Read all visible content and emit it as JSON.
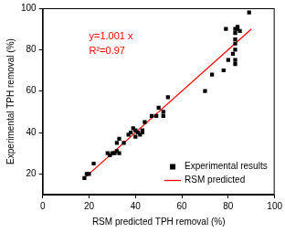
{
  "chart_data": {
    "type": "scatter",
    "x_label": "RSM predicted TPH removal (%)",
    "y_label": "Experimental TPH removal (%)",
    "annotations": [
      "y=1.001 x",
      "R²=0.97"
    ],
    "series": [
      {
        "name": "Experimental results",
        "type": "scatter",
        "marker": "square",
        "color": "#000000",
        "x": [
          18,
          19,
          20,
          22,
          28,
          29,
          30,
          31,
          32,
          32,
          33,
          33,
          35,
          37,
          38,
          39,
          40,
          40,
          41,
          42,
          43,
          43,
          44,
          47,
          49,
          50,
          52,
          52,
          54,
          70,
          73,
          78,
          79,
          80,
          82,
          83,
          83,
          83,
          83,
          83,
          84,
          84,
          85,
          83,
          83,
          89
        ],
        "values": [
          18,
          20,
          20,
          25,
          30,
          29,
          30,
          30,
          35,
          31,
          37,
          30,
          35,
          39,
          40,
          42,
          38,
          41,
          40,
          39,
          40,
          41,
          45,
          48,
          48,
          52,
          48,
          50,
          57,
          60,
          68,
          70,
          90,
          75,
          78,
          80,
          83,
          85,
          88,
          90,
          91,
          90,
          89,
          75,
          73,
          98
        ]
      },
      {
        "name": "RSM predicted",
        "type": "line",
        "line_style": "solid",
        "color": "#ff0000",
        "x": [
          18,
          90
        ],
        "values": [
          18,
          90
        ]
      }
    ],
    "xlim": [
      0,
      100
    ],
    "xticks": [
      0,
      20,
      40,
      60,
      80,
      100
    ],
    "ylim": [
      10,
      100
    ],
    "yticks": [
      20,
      40,
      60,
      80,
      100
    ],
    "grid": false,
    "legend": "lower right"
  }
}
